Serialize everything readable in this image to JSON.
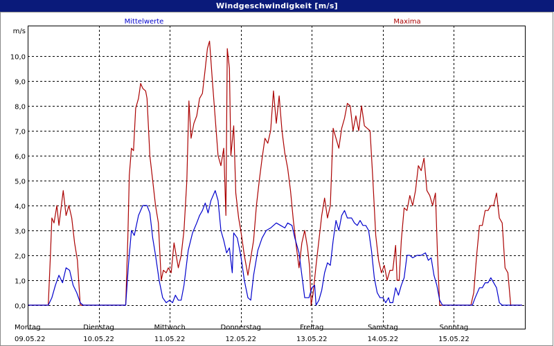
{
  "window": {
    "title": "Windgeschwindigkeit [m/s]"
  },
  "colors": {
    "titlebar": "#0a1a7a",
    "mean": "#0000cc",
    "max": "#aa0000",
    "grid": "#000000"
  },
  "chart_data": {
    "type": "line",
    "ylabel": "m/s",
    "ylim": [
      0,
      11.1
    ],
    "yticks": [
      0,
      1,
      2,
      3,
      4,
      5,
      6,
      7,
      8,
      9,
      10
    ],
    "ytick_labels": [
      "0,0",
      "1,0",
      "2,0",
      "3,0",
      "4,0",
      "5,0",
      "6,0",
      "7,0",
      "8,0",
      "9,0",
      "10,0"
    ],
    "grid": true,
    "legend": [
      {
        "name": "Mittelwerte",
        "color": "#0000cc",
        "position": "top-left"
      },
      {
        "name": "Maxima",
        "color": "#aa0000",
        "position": "top-right"
      }
    ],
    "x_unit": "days from 09.05.22 00:00",
    "xlim": [
      0,
      7
    ],
    "days": [
      {
        "weekday": "Montag",
        "date": "09.05.22"
      },
      {
        "weekday": "Dienstag",
        "date": "10.05.22"
      },
      {
        "weekday": "Mittwoch",
        "date": "11.05.22"
      },
      {
        "weekday": "Donnerstag",
        "date": "12.05.22"
      },
      {
        "weekday": "Freitag",
        "date": "13.05.22"
      },
      {
        "weekday": "Samstag",
        "date": "14.05.22"
      },
      {
        "weekday": "Sonntag",
        "date": "15.05.22"
      }
    ],
    "series": [
      {
        "name": "Mittelwerte",
        "color": "#0000cc",
        "points": [
          [
            0,
            0
          ],
          [
            0.29,
            0
          ],
          [
            0.34,
            0.3
          ],
          [
            0.39,
            0.8
          ],
          [
            0.44,
            1.2
          ],
          [
            0.49,
            0.9
          ],
          [
            0.54,
            1.5
          ],
          [
            0.59,
            1.4
          ],
          [
            0.64,
            0.8
          ],
          [
            0.69,
            0.5
          ],
          [
            0.74,
            0.1
          ],
          [
            0.78,
            0
          ],
          [
            1.0,
            0
          ],
          [
            1.38,
            0
          ],
          [
            1.42,
            1.7
          ],
          [
            1.46,
            3.0
          ],
          [
            1.5,
            2.8
          ],
          [
            1.56,
            3.6
          ],
          [
            1.62,
            4.0
          ],
          [
            1.68,
            4.0
          ],
          [
            1.72,
            3.7
          ],
          [
            1.76,
            2.7
          ],
          [
            1.8,
            2.0
          ],
          [
            1.85,
            1.0
          ],
          [
            1.9,
            0.3
          ],
          [
            1.95,
            0.1
          ],
          [
            2.0,
            0.2
          ],
          [
            2.04,
            0.1
          ],
          [
            2.08,
            0.4
          ],
          [
            2.12,
            0.2
          ],
          [
            2.16,
            0.2
          ],
          [
            2.2,
            0.8
          ],
          [
            2.26,
            2.2
          ],
          [
            2.32,
            2.9
          ],
          [
            2.38,
            3.3
          ],
          [
            2.42,
            3.6
          ],
          [
            2.46,
            3.8
          ],
          [
            2.5,
            4.1
          ],
          [
            2.54,
            3.7
          ],
          [
            2.58,
            4.2
          ],
          [
            2.64,
            4.6
          ],
          [
            2.68,
            4.2
          ],
          [
            2.72,
            3.0
          ],
          [
            2.76,
            2.6
          ],
          [
            2.8,
            2.1
          ],
          [
            2.84,
            2.3
          ],
          [
            2.88,
            1.3
          ],
          [
            2.9,
            2.9
          ],
          [
            2.95,
            2.7
          ],
          [
            3.0,
            2.0
          ],
          [
            3.05,
            1.0
          ],
          [
            3.1,
            0.3
          ],
          [
            3.14,
            0.2
          ],
          [
            3.18,
            1.2
          ],
          [
            3.24,
            2.2
          ],
          [
            3.3,
            2.7
          ],
          [
            3.36,
            3.0
          ],
          [
            3.42,
            3.1
          ],
          [
            3.5,
            3.3
          ],
          [
            3.56,
            3.2
          ],
          [
            3.62,
            3.1
          ],
          [
            3.66,
            3.3
          ],
          [
            3.72,
            3.2
          ],
          [
            3.76,
            2.7
          ],
          [
            3.82,
            2.1
          ],
          [
            3.86,
            1.2
          ],
          [
            3.9,
            0.3
          ],
          [
            3.96,
            0.3
          ],
          [
            4.0,
            0.7
          ],
          [
            4.04,
            0.8
          ],
          [
            4.06,
            0
          ],
          [
            4.1,
            0.2
          ],
          [
            4.14,
            0.6
          ],
          [
            4.18,
            1.3
          ],
          [
            4.22,
            1.7
          ],
          [
            4.26,
            1.6
          ],
          [
            4.3,
            2.6
          ],
          [
            4.34,
            3.4
          ],
          [
            4.38,
            3.0
          ],
          [
            4.42,
            3.6
          ],
          [
            4.46,
            3.8
          ],
          [
            4.5,
            3.5
          ],
          [
            4.56,
            3.5
          ],
          [
            4.6,
            3.3
          ],
          [
            4.64,
            3.2
          ],
          [
            4.68,
            3.4
          ],
          [
            4.72,
            3.2
          ],
          [
            4.76,
            3.2
          ],
          [
            4.8,
            3.0
          ],
          [
            4.84,
            2.2
          ],
          [
            4.88,
            1.1
          ],
          [
            4.92,
            0.5
          ],
          [
            4.96,
            0.3
          ],
          [
            5.0,
            0.3
          ],
          [
            5.04,
            0.1
          ],
          [
            5.08,
            0.3
          ],
          [
            5.1,
            0.1
          ],
          [
            5.14,
            0.1
          ],
          [
            5.18,
            0.7
          ],
          [
            5.22,
            0.4
          ],
          [
            5.26,
            0.8
          ],
          [
            5.3,
            1.1
          ],
          [
            5.34,
            2.0
          ],
          [
            5.38,
            2.0
          ],
          [
            5.42,
            1.9
          ],
          [
            5.48,
            2.0
          ],
          [
            5.54,
            2.0
          ],
          [
            5.6,
            2.1
          ],
          [
            5.64,
            1.8
          ],
          [
            5.68,
            1.9
          ],
          [
            5.72,
            1.2
          ],
          [
            5.76,
            0.8
          ],
          [
            5.8,
            0.2
          ],
          [
            5.84,
            0
          ],
          [
            6.0,
            0
          ],
          [
            6.26,
            0
          ],
          [
            6.3,
            0.3
          ],
          [
            6.36,
            0.7
          ],
          [
            6.4,
            0.7
          ],
          [
            6.44,
            0.9
          ],
          [
            6.48,
            0.9
          ],
          [
            6.52,
            1.1
          ],
          [
            6.56,
            0.9
          ],
          [
            6.6,
            0.7
          ],
          [
            6.64,
            0.1
          ],
          [
            6.68,
            0
          ],
          [
            6.96,
            0
          ]
        ]
      },
      {
        "name": "Maxima",
        "color": "#aa0000",
        "points": [
          [
            0,
            0
          ],
          [
            0.29,
            0
          ],
          [
            0.32,
            2.0
          ],
          [
            0.34,
            3.5
          ],
          [
            0.37,
            3.3
          ],
          [
            0.41,
            4.0
          ],
          [
            0.44,
            3.2
          ],
          [
            0.47,
            3.9
          ],
          [
            0.5,
            4.6
          ],
          [
            0.54,
            3.6
          ],
          [
            0.58,
            4.0
          ],
          [
            0.62,
            3.5
          ],
          [
            0.66,
            2.5
          ],
          [
            0.7,
            1.8
          ],
          [
            0.74,
            0
          ],
          [
            1.0,
            0
          ],
          [
            1.38,
            0
          ],
          [
            1.41,
            2.7
          ],
          [
            1.43,
            5.2
          ],
          [
            1.46,
            6.3
          ],
          [
            1.49,
            6.2
          ],
          [
            1.52,
            7.9
          ],
          [
            1.56,
            8.3
          ],
          [
            1.59,
            8.9
          ],
          [
            1.62,
            8.7
          ],
          [
            1.66,
            8.6
          ],
          [
            1.68,
            8.3
          ],
          [
            1.72,
            6.0
          ],
          [
            1.76,
            5.0
          ],
          [
            1.8,
            4.0
          ],
          [
            1.84,
            3.3
          ],
          [
            1.88,
            1.0
          ],
          [
            1.91,
            1.4
          ],
          [
            1.95,
            1.3
          ],
          [
            1.98,
            1.5
          ],
          [
            2.02,
            1.3
          ],
          [
            2.06,
            2.5
          ],
          [
            2.09,
            2.0
          ],
          [
            2.12,
            1.5
          ],
          [
            2.16,
            2.0
          ],
          [
            2.2,
            3.0
          ],
          [
            2.24,
            5.0
          ],
          [
            2.27,
            8.2
          ],
          [
            2.3,
            6.7
          ],
          [
            2.34,
            7.3
          ],
          [
            2.38,
            7.6
          ],
          [
            2.42,
            8.3
          ],
          [
            2.46,
            8.5
          ],
          [
            2.5,
            9.5
          ],
          [
            2.53,
            10.3
          ],
          [
            2.56,
            10.6
          ],
          [
            2.6,
            9.0
          ],
          [
            2.64,
            7.5
          ],
          [
            2.68,
            6.0
          ],
          [
            2.72,
            5.6
          ],
          [
            2.76,
            6.3
          ],
          [
            2.79,
            3.6
          ],
          [
            2.81,
            10.3
          ],
          [
            2.84,
            9.5
          ],
          [
            2.86,
            6.0
          ],
          [
            2.9,
            7.2
          ],
          [
            2.93,
            4.5
          ],
          [
            2.97,
            3.5
          ],
          [
            3.0,
            3.0
          ],
          [
            3.05,
            2.0
          ],
          [
            3.1,
            1.2
          ],
          [
            3.14,
            1.9
          ],
          [
            3.18,
            2.6
          ],
          [
            3.22,
            4.0
          ],
          [
            3.26,
            5.0
          ],
          [
            3.3,
            5.9
          ],
          [
            3.34,
            6.7
          ],
          [
            3.38,
            6.5
          ],
          [
            3.42,
            7.0
          ],
          [
            3.46,
            8.6
          ],
          [
            3.5,
            7.3
          ],
          [
            3.54,
            8.4
          ],
          [
            3.58,
            7.0
          ],
          [
            3.62,
            6.1
          ],
          [
            3.66,
            5.5
          ],
          [
            3.7,
            4.6
          ],
          [
            3.74,
            3.4
          ],
          [
            3.78,
            2.4
          ],
          [
            3.82,
            1.5
          ],
          [
            3.86,
            2.5
          ],
          [
            3.9,
            3.0
          ],
          [
            3.94,
            2.3
          ],
          [
            3.97,
            1.5
          ],
          [
            3.99,
            0
          ],
          [
            4.02,
            0.5
          ],
          [
            4.06,
            1.6
          ],
          [
            4.1,
            2.6
          ],
          [
            4.14,
            3.6
          ],
          [
            4.18,
            4.3
          ],
          [
            4.22,
            3.5
          ],
          [
            4.26,
            4.0
          ],
          [
            4.3,
            7.1
          ],
          [
            4.34,
            6.7
          ],
          [
            4.38,
            6.3
          ],
          [
            4.42,
            7.1
          ],
          [
            4.46,
            7.5
          ],
          [
            4.5,
            8.1
          ],
          [
            4.54,
            8.0
          ],
          [
            4.58,
            7.0
          ],
          [
            4.62,
            7.6
          ],
          [
            4.66,
            7.0
          ],
          [
            4.7,
            8.0
          ],
          [
            4.74,
            7.2
          ],
          [
            4.78,
            7.1
          ],
          [
            4.82,
            7.0
          ],
          [
            4.86,
            5.0
          ],
          [
            4.9,
            2.8
          ],
          [
            4.94,
            1.8
          ],
          [
            4.98,
            1.3
          ],
          [
            5.02,
            1.6
          ],
          [
            5.06,
            1.0
          ],
          [
            5.1,
            1.4
          ],
          [
            5.14,
            1.4
          ],
          [
            5.18,
            2.4
          ],
          [
            5.2,
            1.0
          ],
          [
            5.23,
            1.0
          ],
          [
            5.26,
            2.6
          ],
          [
            5.3,
            3.9
          ],
          [
            5.34,
            3.8
          ],
          [
            5.38,
            4.4
          ],
          [
            5.42,
            4.0
          ],
          [
            5.46,
            4.6
          ],
          [
            5.5,
            5.6
          ],
          [
            5.54,
            5.4
          ],
          [
            5.58,
            5.9
          ],
          [
            5.62,
            4.6
          ],
          [
            5.66,
            4.4
          ],
          [
            5.7,
            4.0
          ],
          [
            5.74,
            4.5
          ],
          [
            5.77,
            2.0
          ],
          [
            5.8,
            0
          ],
          [
            6.0,
            0
          ],
          [
            6.24,
            0
          ],
          [
            6.28,
            0.5
          ],
          [
            6.32,
            2.0
          ],
          [
            6.36,
            3.2
          ],
          [
            6.4,
            3.2
          ],
          [
            6.44,
            3.8
          ],
          [
            6.48,
            3.8
          ],
          [
            6.52,
            4.0
          ],
          [
            6.56,
            4.0
          ],
          [
            6.6,
            4.5
          ],
          [
            6.64,
            3.5
          ],
          [
            6.68,
            3.3
          ],
          [
            6.72,
            1.5
          ],
          [
            6.76,
            1.3
          ],
          [
            6.8,
            0
          ],
          [
            6.96,
            0
          ]
        ]
      }
    ]
  }
}
